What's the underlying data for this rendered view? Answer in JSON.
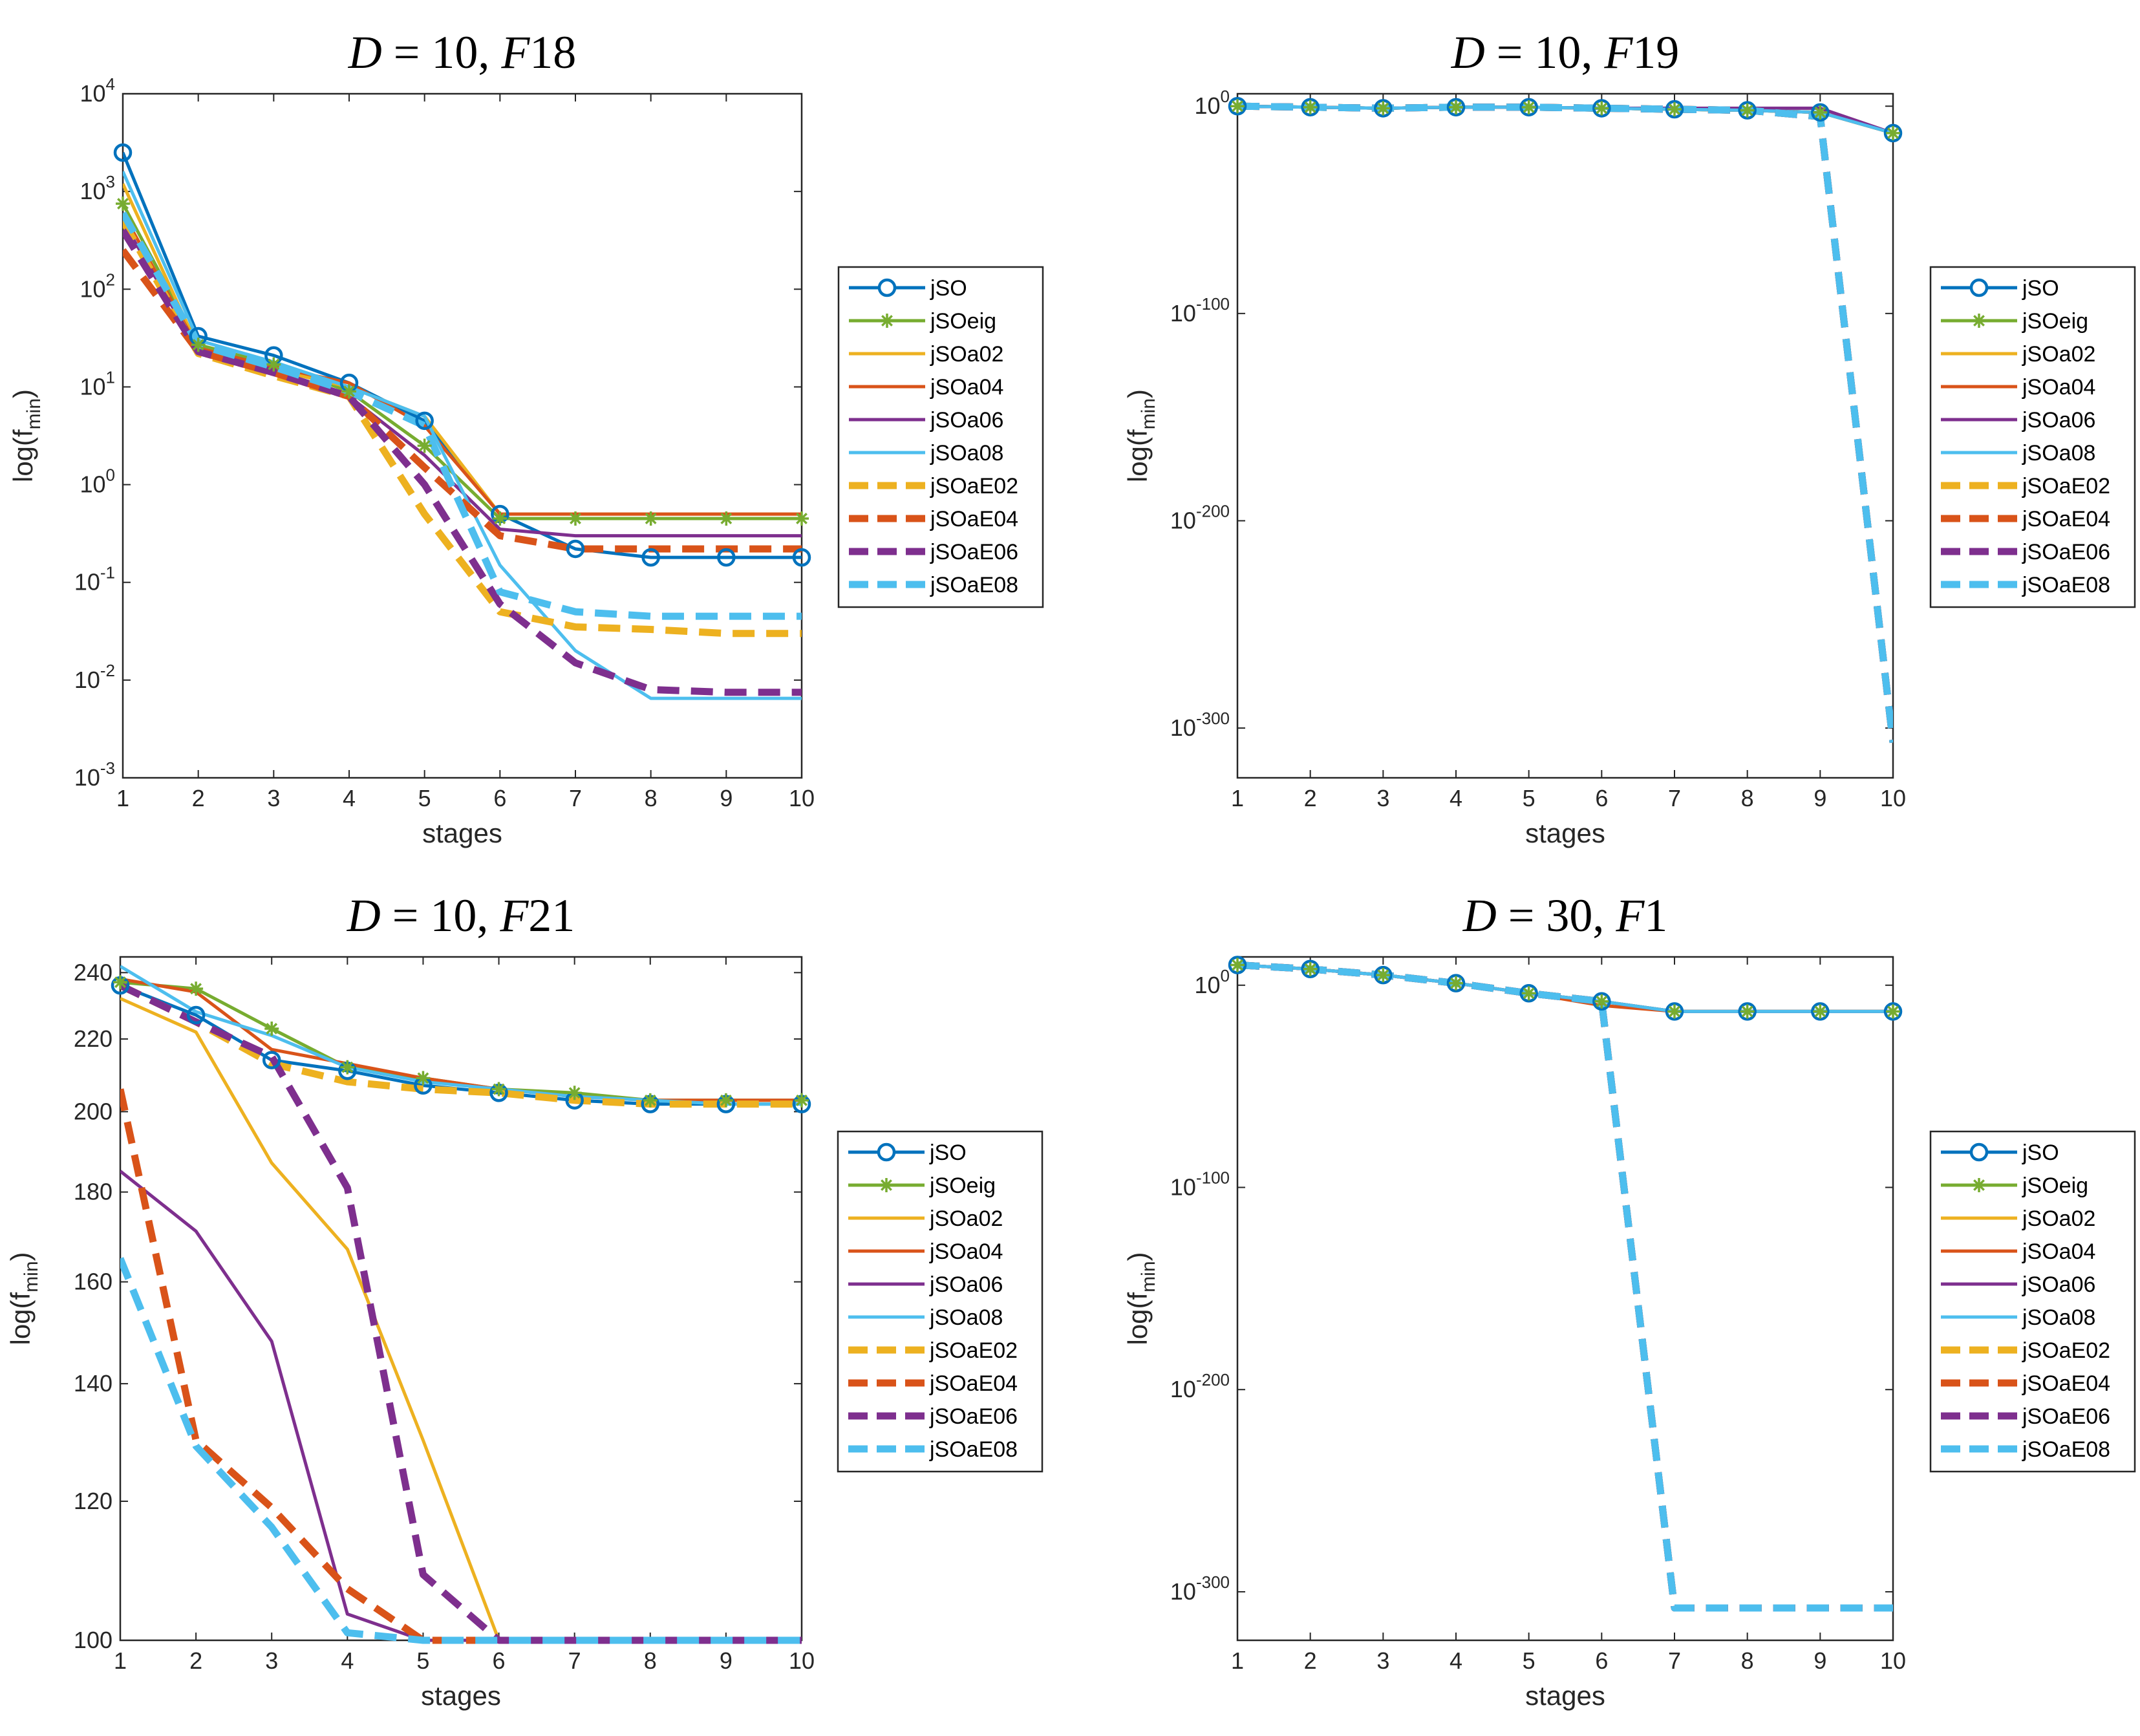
{
  "figure": {
    "series_styles": [
      {
        "name": "jSO",
        "color": "#0072BD",
        "dash": "solid",
        "marker": "circle"
      },
      {
        "name": "jSOeig",
        "color": "#77AC30",
        "dash": "solid",
        "marker": "asterisk"
      },
      {
        "name": "jSOa02",
        "color": "#EDB120",
        "dash": "solid",
        "marker": "none"
      },
      {
        "name": "jSOa04",
        "color": "#D95319",
        "dash": "solid",
        "marker": "none"
      },
      {
        "name": "jSOa06",
        "color": "#7E2F8E",
        "dash": "solid",
        "marker": "none"
      },
      {
        "name": "jSOa08",
        "color": "#4DBEEE",
        "dash": "solid",
        "marker": "none"
      },
      {
        "name": "jSOaE02",
        "color": "#EDB120",
        "dash": "dashed",
        "marker": "none"
      },
      {
        "name": "jSOaE04",
        "color": "#D95319",
        "dash": "dashed",
        "marker": "none"
      },
      {
        "name": "jSOaE06",
        "color": "#7E2F8E",
        "dash": "dashed",
        "marker": "none"
      },
      {
        "name": "jSOaE08",
        "color": "#4DBEEE",
        "dash": "dashed",
        "marker": "none"
      }
    ]
  },
  "chart_data": [
    {
      "type": "line",
      "title": "D = 10, F18",
      "xlabel": "stages",
      "ylabel": "log(f_min)",
      "yscale": "log",
      "xlim": [
        1,
        10
      ],
      "ylim": [
        0.001,
        10000
      ],
      "x_ticks": [
        "1",
        "2",
        "3",
        "4",
        "5",
        "6",
        "7",
        "8",
        "9",
        "10"
      ],
      "y_ticks": [
        {
          "value": 0.001,
          "base": "10",
          "exp": "-3"
        },
        {
          "value": 0.01,
          "base": "10",
          "exp": "-2"
        },
        {
          "value": 0.1,
          "base": "10",
          "exp": "-1"
        },
        {
          "value": 1,
          "base": "10",
          "exp": "0"
        },
        {
          "value": 10,
          "base": "10",
          "exp": "1"
        },
        {
          "value": 100,
          "base": "10",
          "exp": "2"
        },
        {
          "value": 1000,
          "base": "10",
          "exp": "3"
        },
        {
          "value": 10000,
          "base": "10",
          "exp": "4"
        }
      ],
      "grid": false,
      "legend": "right",
      "x": [
        1,
        2,
        3,
        4,
        5,
        6,
        7,
        8,
        9,
        10
      ],
      "series": [
        {
          "name": "jSO",
          "values": [
            2500,
            33,
            21,
            11,
            4.5,
            0.5,
            0.22,
            0.18,
            0.18,
            0.18
          ]
        },
        {
          "name": "jSOeig",
          "values": [
            750,
            27,
            17,
            9,
            2.5,
            0.45,
            0.45,
            0.45,
            0.45,
            0.45
          ]
        },
        {
          "name": "jSOa02",
          "values": [
            1200,
            25,
            15,
            10,
            5,
            0.5,
            0.5,
            0.5,
            0.5,
            0.5
          ]
        },
        {
          "name": "jSOa04",
          "values": [
            600,
            25,
            16,
            11,
            4,
            0.5,
            0.5,
            0.5,
            0.5,
            0.5
          ]
        },
        {
          "name": "jSOa06",
          "values": [
            500,
            23,
            15,
            8,
            2,
            0.35,
            0.3,
            0.3,
            0.3,
            0.3
          ]
        },
        {
          "name": "jSOa08",
          "values": [
            1600,
            30,
            18,
            10,
            5,
            0.15,
            0.02,
            0.0065,
            0.0065,
            0.0065
          ]
        },
        {
          "name": "jSOaE02",
          "values": [
            500,
            22,
            13,
            8,
            0.5,
            0.05,
            0.035,
            0.033,
            0.03,
            0.03
          ]
        },
        {
          "name": "jSOaE04",
          "values": [
            250,
            23,
            14,
            8,
            1.5,
            0.3,
            0.22,
            0.22,
            0.22,
            0.22
          ]
        },
        {
          "name": "jSOaE06",
          "values": [
            400,
            23,
            14,
            8,
            1,
            0.06,
            0.015,
            0.008,
            0.0075,
            0.0075
          ]
        },
        {
          "name": "jSOaE08",
          "values": [
            600,
            27,
            16,
            9,
            4,
            0.08,
            0.05,
            0.045,
            0.045,
            0.045
          ]
        }
      ]
    },
    {
      "type": "line",
      "title": "D = 10, F19",
      "xlabel": "stages",
      "ylabel": "log(f_min)",
      "yscale": "log",
      "xlim": [
        1,
        10
      ],
      "ylim_exponent": [
        -324,
        6
      ],
      "x_ticks": [
        "1",
        "2",
        "3",
        "4",
        "5",
        "6",
        "7",
        "8",
        "9",
        "10"
      ],
      "y_ticks": [
        {
          "exp_value": 0,
          "base": "10",
          "exp": "0"
        },
        {
          "exp_value": -100,
          "base": "10",
          "exp": "-100"
        },
        {
          "exp_value": -200,
          "base": "10",
          "exp": "-200"
        },
        {
          "exp_value": -300,
          "base": "10",
          "exp": "-300"
        }
      ],
      "grid": false,
      "legend": "right",
      "x": [
        1,
        2,
        3,
        4,
        5,
        6,
        7,
        8,
        9,
        10
      ],
      "value_format": "log10 exponent of f_min",
      "series": [
        {
          "name": "jSO",
          "values": [
            0,
            -0.5,
            -1,
            -0.5,
            -0.5,
            -1,
            -1.5,
            -2,
            -3,
            -13
          ]
        },
        {
          "name": "jSOeig",
          "values": [
            0,
            -0.5,
            -1,
            -0.5,
            -0.5,
            -1,
            -1.5,
            -2,
            -3,
            -13
          ]
        },
        {
          "name": "jSOa02",
          "values": [
            0,
            -0.5,
            -1,
            -0.5,
            -0.5,
            -1,
            -1.5,
            -2,
            -3,
            -13
          ]
        },
        {
          "name": "jSOa04",
          "values": [
            0,
            -0.5,
            -1,
            -0.5,
            -0.5,
            -1,
            -1.5,
            -2,
            -3,
            -13
          ]
        },
        {
          "name": "jSOa06",
          "values": [
            0,
            -0.5,
            -1,
            -0.5,
            -0.5,
            -1,
            -1,
            -1,
            -1,
            -13
          ]
        },
        {
          "name": "jSOa08",
          "values": [
            0,
            -0.5,
            -1,
            -0.5,
            -0.5,
            -1,
            -1.5,
            -2,
            -3,
            -13
          ]
        },
        {
          "name": "jSOaE02",
          "values": [
            0,
            -0.5,
            -1,
            -0.5,
            -0.5,
            -1,
            -1.5,
            -2,
            -5,
            -307
          ]
        },
        {
          "name": "jSOaE04",
          "values": [
            0,
            -0.5,
            -1,
            -0.5,
            -0.5,
            -1,
            -1.5,
            -2,
            -5,
            -307
          ]
        },
        {
          "name": "jSOaE06",
          "values": [
            0,
            -0.5,
            -1,
            -0.5,
            -0.5,
            -1,
            -1.5,
            -2,
            -5,
            -307
          ]
        },
        {
          "name": "jSOaE08",
          "values": [
            0,
            -0.5,
            -1,
            -0.5,
            -0.5,
            -1,
            -1.5,
            -2,
            -5,
            -307
          ]
        }
      ]
    },
    {
      "type": "line",
      "title": "D = 10, F21",
      "xlabel": "stages",
      "ylabel": "log(f_min)",
      "yscale": "log",
      "xlim": [
        1,
        10
      ],
      "ylim": [
        100,
        245
      ],
      "x_ticks": [
        "1",
        "2",
        "3",
        "4",
        "5",
        "6",
        "7",
        "8",
        "9",
        "10"
      ],
      "y_ticks": [
        {
          "value": 100,
          "label": "100"
        },
        {
          "value": 120,
          "label": "120"
        },
        {
          "value": 140,
          "label": "140"
        },
        {
          "value": 160,
          "label": "160"
        },
        {
          "value": 180,
          "label": "180"
        },
        {
          "value": 200,
          "label": "200"
        },
        {
          "value": 220,
          "label": "220"
        },
        {
          "value": 240,
          "label": "240"
        }
      ],
      "grid": false,
      "legend": "right",
      "x": [
        1,
        2,
        3,
        4,
        5,
        6,
        7,
        8,
        9,
        10
      ],
      "series": [
        {
          "name": "jSO",
          "values": [
            236,
            227,
            214,
            211,
            207,
            205,
            203,
            202,
            202,
            202
          ]
        },
        {
          "name": "jSOeig",
          "values": [
            237,
            235,
            223,
            212,
            209,
            206,
            205,
            203,
            203,
            203
          ]
        },
        {
          "name": "jSOa02",
          "values": [
            232,
            222,
            187,
            167,
            130,
            100,
            100,
            100,
            100,
            100
          ]
        },
        {
          "name": "jSOa04",
          "values": [
            238,
            234,
            217,
            213,
            209,
            206,
            204,
            203,
            203,
            203
          ]
        },
        {
          "name": "jSOa06",
          "values": [
            185,
            171,
            148,
            103.5,
            100,
            100,
            100,
            100,
            100,
            100
          ]
        },
        {
          "name": "jSOa08",
          "values": [
            242,
            228,
            221,
            212,
            208,
            206,
            204,
            203,
            202,
            202
          ]
        },
        {
          "name": "jSOaE02",
          "values": [
            236,
            225,
            213,
            208,
            206,
            205,
            203,
            202,
            202,
            202
          ]
        },
        {
          "name": "jSOaE04",
          "values": [
            206,
            130,
            119,
            107,
            100,
            100,
            100,
            100,
            100,
            100
          ]
        },
        {
          "name": "jSOaE06",
          "values": [
            236,
            225,
            215,
            181,
            109,
            100,
            100,
            100,
            100,
            100
          ]
        },
        {
          "name": "jSOaE08",
          "values": [
            165,
            129,
            116,
            101,
            100,
            100,
            100,
            100,
            100,
            100
          ]
        }
      ]
    },
    {
      "type": "line",
      "title": "D = 30, F1",
      "xlabel": "stages",
      "ylabel": "log(f_min)",
      "yscale": "log",
      "xlim": [
        1,
        10
      ],
      "ylim_exponent": [
        -324,
        14
      ],
      "x_ticks": [
        "1",
        "2",
        "3",
        "4",
        "5",
        "6",
        "7",
        "8",
        "9",
        "10"
      ],
      "y_ticks": [
        {
          "exp_value": 0,
          "base": "10",
          "exp": "0"
        },
        {
          "exp_value": -100,
          "base": "10",
          "exp": "-100"
        },
        {
          "exp_value": -200,
          "base": "10",
          "exp": "-200"
        },
        {
          "exp_value": -300,
          "base": "10",
          "exp": "-300"
        }
      ],
      "grid": false,
      "legend": "right",
      "x": [
        1,
        2,
        3,
        4,
        5,
        6,
        7,
        8,
        9,
        10
      ],
      "value_format": "log10 exponent of f_min",
      "series": [
        {
          "name": "jSO",
          "values": [
            10,
            8,
            5,
            1,
            -4,
            -8,
            -13,
            -13,
            -13,
            -13
          ]
        },
        {
          "name": "jSOeig",
          "values": [
            10,
            8,
            5,
            1,
            -4,
            -8,
            -13,
            -13,
            -13,
            -13
          ]
        },
        {
          "name": "jSOa02",
          "values": [
            10,
            8,
            5,
            1,
            -4,
            -8,
            -13,
            -13,
            -13,
            -13
          ]
        },
        {
          "name": "jSOa04",
          "values": [
            10,
            8,
            5,
            1,
            -4,
            -10,
            -13,
            -13,
            -13,
            -13
          ]
        },
        {
          "name": "jSOa06",
          "values": [
            10,
            8,
            5,
            1,
            -4,
            -8,
            -13,
            -13,
            -13,
            -13
          ]
        },
        {
          "name": "jSOa08",
          "values": [
            10,
            8,
            5,
            1,
            -4,
            -8,
            -13,
            -13,
            -13,
            -13
          ]
        },
        {
          "name": "jSOaE02",
          "values": [
            10,
            8,
            5,
            1,
            -4,
            -8,
            -308,
            -308,
            -308,
            -308
          ]
        },
        {
          "name": "jSOaE04",
          "values": [
            10,
            8,
            5,
            1,
            -4,
            -8,
            -308,
            -308,
            -308,
            -308
          ]
        },
        {
          "name": "jSOaE06",
          "values": [
            10,
            8,
            5,
            1,
            -4,
            -8,
            -308,
            -308,
            -308,
            -308
          ]
        },
        {
          "name": "jSOaE08",
          "values": [
            10,
            8,
            5,
            1,
            -4,
            -8,
            -308,
            -308,
            -308,
            -308
          ]
        }
      ]
    }
  ]
}
